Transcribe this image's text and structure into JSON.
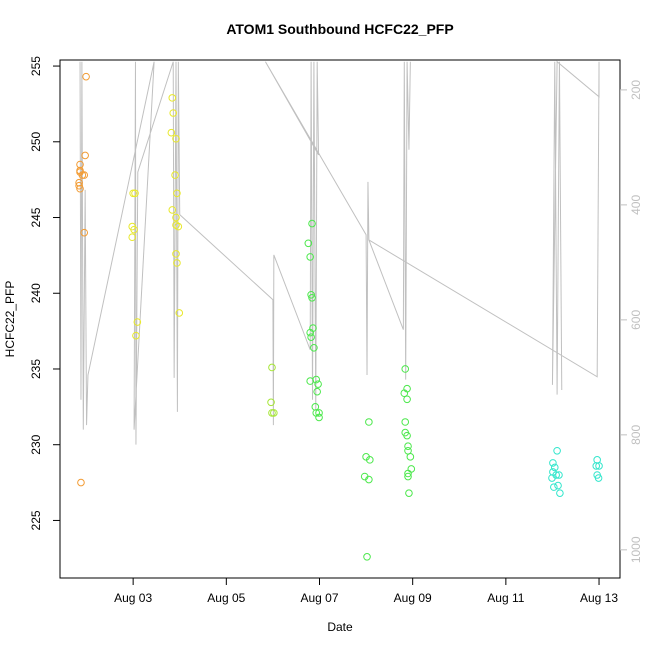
{
  "chart_data": {
    "type": "scatter",
    "title": "ATOM1 Southbound HCFC22_PFP",
    "xlabel": "Date",
    "ylabel": "HCFC22_PFP",
    "xlim": [
      1.43,
      13.45
    ],
    "xticks": [
      {
        "value": 3,
        "label": "Aug 03"
      },
      {
        "value": 5,
        "label": "Aug 05"
      },
      {
        "value": 7,
        "label": "Aug 07"
      },
      {
        "value": 9,
        "label": "Aug 09"
      },
      {
        "value": 11,
        "label": "Aug 11"
      },
      {
        "value": 13,
        "label": "Aug 13"
      }
    ],
    "ylim": [
      221.2,
      255.4
    ],
    "yticks": [
      225,
      230,
      235,
      240,
      245,
      250,
      255
    ],
    "y2lim": [
      1049,
      148
    ],
    "y2ticks": [
      200,
      400,
      600,
      800,
      1000
    ],
    "series": [
      {
        "color": "#f39c34",
        "x": [
          1.99,
          1.86,
          1.86,
          1.91,
          1.97,
          1.95,
          1.84,
          1.84,
          1.86,
          1.95,
          1.88,
          1.86
        ],
        "values": [
          254.3,
          248.5,
          248.1,
          247.8,
          249.1,
          247.8,
          247.3,
          247.1,
          246.9,
          244.0,
          227.5,
          248.0
        ]
      },
      {
        "color": "#e8e82a",
        "x": [
          3.0,
          3.04,
          2.98,
          3.02,
          2.98,
          3.09,
          3.06,
          3.84,
          3.86,
          3.82,
          3.92,
          3.9,
          3.94,
          3.84,
          3.92,
          3.92,
          3.97,
          3.92,
          3.94,
          3.99
        ],
        "values": [
          246.6,
          246.6,
          244.4,
          244.2,
          243.7,
          238.1,
          237.2,
          252.9,
          251.9,
          250.6,
          250.2,
          247.8,
          246.6,
          245.5,
          245.0,
          244.5,
          244.4,
          242.6,
          242.0,
          238.7
        ]
      },
      {
        "color": "#a6e636",
        "x": [
          5.98,
          5.96,
          5.98,
          6.02
        ],
        "values": [
          235.1,
          232.8,
          232.1,
          232.1
        ]
      },
      {
        "color": "#4ce84c",
        "x": [
          6.84,
          6.76,
          6.8,
          6.82,
          6.84,
          6.8,
          6.82,
          6.86,
          6.88,
          6.8,
          6.93,
          6.97,
          6.95,
          6.91,
          6.93,
          6.99,
          6.99,
          8.0,
          8.08,
          7.97,
          8.06,
          8.06,
          8.02,
          8.84,
          8.82,
          8.88,
          8.88,
          8.84,
          8.84,
          8.88,
          8.9,
          8.9,
          8.95,
          8.97,
          8.9,
          8.9,
          8.92
        ],
        "values": [
          244.6,
          243.3,
          242.4,
          239.9,
          239.7,
          237.4,
          237.1,
          237.7,
          236.4,
          234.2,
          234.3,
          234.0,
          233.5,
          232.5,
          232.1,
          232.1,
          231.8,
          229.2,
          229.0,
          227.9,
          227.7,
          231.5,
          222.6,
          235.0,
          233.4,
          233.7,
          233.0,
          231.5,
          230.8,
          230.6,
          229.9,
          229.6,
          229.2,
          228.4,
          228.1,
          227.9,
          226.8
        ]
      },
      {
        "color": "#33e6cc",
        "x": [
          12.1,
          12.01,
          12.05,
          12.01,
          12.08,
          11.99,
          12.14,
          12.12,
          12.03,
          12.16,
          12.96,
          13.0,
          12.94,
          12.96,
          12.99
        ],
        "values": [
          229.6,
          228.8,
          228.5,
          228.2,
          228.0,
          227.8,
          228.0,
          227.3,
          227.2,
          226.8,
          229.0,
          228.6,
          228.6,
          228.0,
          227.8
        ]
      },
      {
        "type": "line",
        "axis": "y2",
        "color": "#c0c0c0",
        "x": [
          1.86,
          1.88,
          1.9,
          1.93,
          1.97,
          2.0,
          2.03,
          3.45,
          3.02,
          3.05,
          3.06,
          3.1,
          3.86,
          3.88,
          3.92,
          3.95,
          3.97,
          4.0,
          6.0,
          6.01,
          6.02,
          6.8,
          6.82,
          6.85,
          6.88,
          6.92,
          6.95,
          6.98,
          5.84,
          8.0,
          8.02,
          8.04,
          8.06,
          8.8,
          8.82,
          8.85,
          8.88,
          8.92,
          8.95,
          null,
          8.06,
          12.96,
          13.0,
          13.0,
          12.1,
          12.0,
          12.05,
          12.1,
          12.15,
          12.2
        ],
        "values": [
          151,
          739,
          151,
          791,
          374,
          783,
          696,
          151,
          791,
          151,
          817,
          343,
          151,
          701,
          151,
          760,
          151,
          417,
          565,
          783,
          487,
          652,
          151,
          739,
          151,
          757,
          151,
          313,
          151,
          452,
          696,
          360,
          461,
          617,
          151,
          704,
          151,
          304,
          151,
          null,
          461,
          699,
          151,
          212,
          151,
          713,
          151,
          730,
          151,
          722
        ]
      }
    ]
  }
}
